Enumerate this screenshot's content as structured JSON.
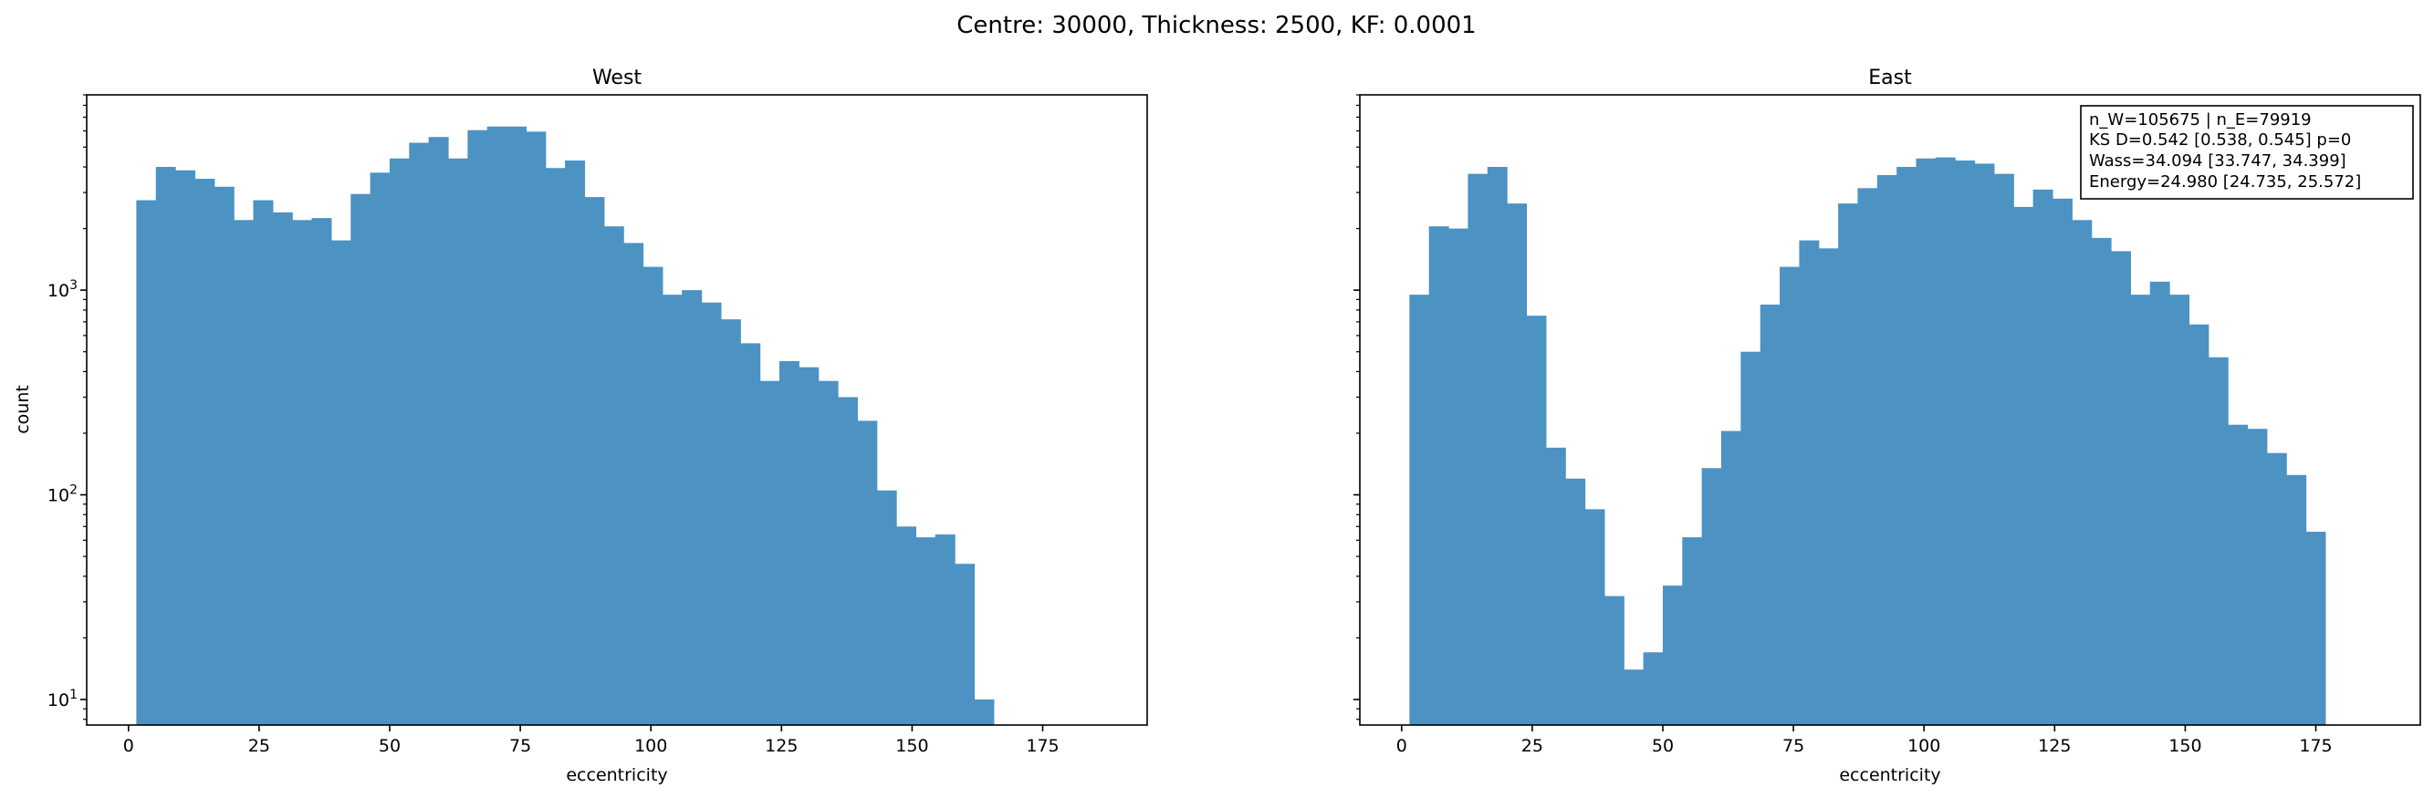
{
  "figure": {
    "suptitle": "Centre: 30000, Thickness: 2500, KF: 0.0001"
  },
  "chart_data": [
    {
      "type": "bar",
      "title": "West",
      "xlabel": "eccentricity",
      "ylabel": "count",
      "yscale": "log",
      "xlim": [
        -8,
        195
      ],
      "ylim": [
        7.5,
        9000
      ],
      "x_ticks": [
        0,
        25,
        50,
        75,
        100,
        125,
        150,
        175
      ],
      "y_ticks": [
        {
          "value": 10,
          "base": "10",
          "exp": "1"
        },
        {
          "value": 100,
          "base": "10",
          "exp": "2"
        },
        {
          "value": 1000,
          "base": "10",
          "exp": "3"
        }
      ],
      "bin_start": 1.5,
      "bin_width": 3.73,
      "color": "#4c92c3",
      "values": [
        2750,
        4000,
        3850,
        3500,
        3200,
        2200,
        2750,
        2400,
        2200,
        2250,
        1750,
        2950,
        3750,
        4400,
        5250,
        5600,
        4400,
        6050,
        6300,
        6300,
        5950,
        3950,
        4300,
        2850,
        2050,
        1700,
        1300,
        950,
        1000,
        870,
        720,
        550,
        360,
        450,
        420,
        360,
        300,
        230,
        105,
        70,
        62,
        64,
        46,
        10
      ]
    },
    {
      "type": "bar",
      "title": "East",
      "xlabel": "eccentricity",
      "ylabel": "",
      "yscale": "log",
      "xlim": [
        -8,
        195
      ],
      "ylim": [
        7.5,
        9000
      ],
      "x_ticks": [
        0,
        25,
        50,
        75,
        100,
        125,
        150,
        175
      ],
      "bin_start": 1.5,
      "bin_width": 3.73,
      "color": "#4c92c3",
      "values": [
        950,
        2050,
        2000,
        3700,
        4000,
        2650,
        750,
        170,
        120,
        85,
        32,
        14,
        17,
        36,
        62,
        135,
        205,
        500,
        850,
        1300,
        1750,
        1600,
        2650,
        3150,
        3650,
        4000,
        4400,
        4450,
        4300,
        4150,
        3700,
        2550,
        3100,
        2800,
        2200,
        1800,
        1550,
        950,
        1100,
        950,
        680,
        470,
        220,
        210,
        160,
        125,
        66
      ],
      "annotation": [
        "n_W=105675 | n_E=79919",
        "KS D=0.542 [0.538, 0.545]  p=0",
        "Wass=34.094 [33.747, 34.399]",
        "Energy=24.980 [24.735, 25.572]"
      ]
    }
  ]
}
